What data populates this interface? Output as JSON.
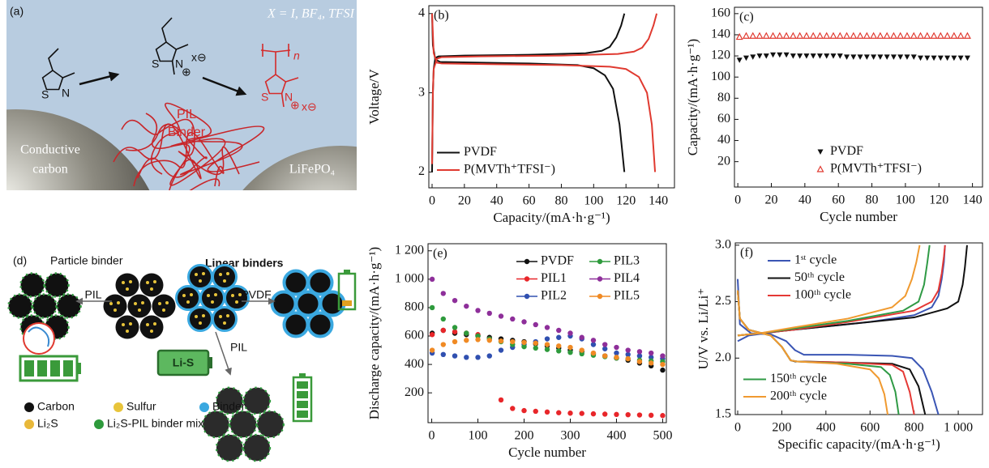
{
  "panel_a": {
    "label": "(a)",
    "formula": "X = I, BF₄, TFSI",
    "pil": "PIL",
    "binder": "Binder",
    "carbon": [
      "Conductive",
      "carbon"
    ],
    "lifepo4": "LiFePO₄",
    "atoms": [
      "S",
      "N",
      "S",
      "N",
      "⊕",
      "x⊖",
      "S",
      "N",
      "⊕",
      "x⊖",
      "n"
    ]
  },
  "panel_d": {
    "label": "(d)",
    "particle": "Particle binder",
    "linear": "Linear binders",
    "arrows": [
      "PIL",
      "PVDF",
      "PIL"
    ],
    "battery": "Li-S",
    "legend": [
      "Carbon",
      "Sulfur",
      "Binder",
      "Li₂S",
      "Li₂S-PIL binder mix"
    ]
  },
  "chart_data": [
    {
      "type": "line",
      "label": "(b)",
      "xlabel": "Capacity/(mA·h·g⁻¹)",
      "ylabel": "Voltage/V",
      "xlim": [
        -2,
        150
      ],
      "ylim": [
        1.8,
        4.1
      ],
      "xticks": [
        0,
        20,
        40,
        60,
        80,
        100,
        120,
        140
      ],
      "yticks": [
        2,
        3,
        4
      ],
      "legend": "lower left",
      "series": [
        {
          "name": "PVDF",
          "color": "#111111",
          "curves": [
            {
              "x": [
                0,
                0.5,
                1,
                2,
                4,
                20,
                60,
                95,
                105,
                110,
                114,
                117,
                119
              ],
              "values": [
                2.0,
                3.0,
                3.3,
                3.44,
                3.46,
                3.47,
                3.48,
                3.5,
                3.53,
                3.58,
                3.7,
                3.85,
                4.0
              ]
            },
            {
              "x": [
                0,
                0.5,
                2,
                5,
                30,
                60,
                90,
                100,
                107,
                112,
                116,
                119
              ],
              "values": [
                4.0,
                3.6,
                3.42,
                3.39,
                3.38,
                3.37,
                3.35,
                3.31,
                3.22,
                3.05,
                2.6,
                2.0
              ]
            }
          ]
        },
        {
          "name": "P(MVTh⁺TFSI⁻)",
          "color": "#e03a30",
          "curves": [
            {
              "x": [
                0,
                0.5,
                1,
                3,
                6,
                30,
                80,
                115,
                125,
                130,
                134,
                137,
                139
              ],
              "values": [
                2.1,
                3.0,
                3.3,
                3.43,
                3.45,
                3.46,
                3.47,
                3.49,
                3.52,
                3.57,
                3.68,
                3.85,
                4.0
              ]
            },
            {
              "x": [
                0,
                1,
                3,
                6,
                40,
                80,
                110,
                120,
                128,
                133,
                136,
                138
              ],
              "values": [
                4.0,
                3.5,
                3.38,
                3.37,
                3.36,
                3.35,
                3.33,
                3.3,
                3.2,
                3.0,
                2.6,
                2.0
              ]
            }
          ]
        }
      ]
    },
    {
      "type": "scatter",
      "label": "(c)",
      "xlabel": "Cycle number",
      "ylabel": "Capacity/(mA·h·g⁻¹)",
      "xlim": [
        -2,
        146
      ],
      "ylim": [
        -4,
        166
      ],
      "xticks": [
        0,
        20,
        40,
        60,
        80,
        100,
        120,
        140
      ],
      "yticks": [
        20,
        40,
        60,
        80,
        100,
        120,
        140,
        160
      ],
      "legend": "lower center",
      "x": [
        1,
        5,
        9,
        13,
        17,
        21,
        25,
        29,
        33,
        37,
        41,
        45,
        49,
        53,
        57,
        61,
        65,
        69,
        73,
        77,
        81,
        85,
        89,
        93,
        97,
        101,
        105,
        109,
        113,
        117,
        121,
        125,
        129,
        133,
        137
      ],
      "series": [
        {
          "name": "PVDF",
          "color": "#111111",
          "marker": "triangle-down",
          "values": [
            116,
            118,
            119,
            120,
            120,
            121,
            121,
            121,
            120,
            120,
            120,
            120,
            120,
            120,
            120,
            120,
            119,
            119,
            119,
            119,
            119,
            119,
            119,
            119,
            119,
            119,
            119,
            118,
            118,
            118,
            118,
            118,
            118,
            118,
            118
          ]
        },
        {
          "name": "P(MVTh⁺TFSI⁻)",
          "color": "#e03a30",
          "marker": "triangle-up",
          "values": [
            138,
            139,
            139,
            139,
            139,
            139,
            139,
            139,
            139,
            139,
            139,
            139,
            139,
            139,
            139,
            139,
            139,
            139,
            139,
            139,
            139,
            139,
            139,
            139,
            139,
            139,
            139,
            139,
            139,
            139,
            139,
            139,
            139,
            139,
            139
          ]
        }
      ]
    },
    {
      "type": "scatter",
      "label": "(e)",
      "xlabel": "Cycle number",
      "ylabel": "Discharge capacity/(mA·h·g⁻¹)",
      "xlim": [
        -8,
        508
      ],
      "ylim": [
        -10,
        1250
      ],
      "xticks": [
        0,
        100,
        200,
        300,
        400,
        500
      ],
      "yticks": [
        200,
        400,
        600,
        800,
        {
          "value": 1000,
          "label": "1 000"
        },
        {
          "value": 1200,
          "label": "1 200"
        }
      ],
      "legend": "upper right",
      "legend_columns": 2,
      "x": [
        1,
        25,
        50,
        75,
        100,
        125,
        150,
        175,
        200,
        225,
        250,
        275,
        300,
        325,
        350,
        375,
        400,
        425,
        450,
        475,
        500
      ],
      "series": [
        {
          "name": "PVDF",
          "color": "#111111",
          "marker": "circle",
          "values": [
            620,
            640,
            620,
            610,
            600,
            590,
            580,
            570,
            560,
            545,
            530,
            515,
            500,
            490,
            475,
            460,
            445,
            430,
            410,
            390,
            360
          ]
        },
        {
          "name": "PIL1",
          "color": "#e8262a",
          "marker": "circle",
          "values": [
            610,
            640,
            630,
            620,
            610,
            580,
            150,
            90,
            75,
            70,
            65,
            60,
            57,
            55,
            52,
            50,
            48,
            46,
            44,
            42,
            40
          ]
        },
        {
          "name": "PIL2",
          "color": "#3050b0",
          "marker": "circle",
          "values": [
            480,
            470,
            460,
            450,
            450,
            460,
            500,
            520,
            540,
            560,
            580,
            590,
            600,
            580,
            540,
            510,
            480,
            470,
            460,
            450,
            440
          ]
        },
        {
          "name": "PIL3",
          "color": "#2e9a3c",
          "marker": "circle",
          "values": [
            800,
            720,
            660,
            620,
            600,
            580,
            560,
            540,
            525,
            515,
            505,
            495,
            485,
            475,
            465,
            455,
            445,
            440,
            430,
            425,
            420
          ]
        },
        {
          "name": "PIL4",
          "color": "#8e2f9a",
          "marker": "circle",
          "values": [
            1000,
            900,
            850,
            810,
            780,
            760,
            740,
            720,
            700,
            680,
            660,
            640,
            620,
            590,
            570,
            540,
            520,
            500,
            490,
            480,
            460
          ]
        },
        {
          "name": "PIL5",
          "color": "#f08a24",
          "marker": "circle",
          "values": [
            500,
            540,
            560,
            570,
            575,
            570,
            565,
            560,
            555,
            550,
            540,
            530,
            520,
            500,
            480,
            460,
            450,
            440,
            420,
            410,
            400
          ]
        }
      ]
    },
    {
      "type": "line",
      "label": "(f)",
      "xlabel": "Specific capacity/(mA·h·g⁻¹)",
      "ylabel": "U/V vs. Li/Li⁺",
      "xlim": [
        -11,
        1110
      ],
      "ylim": [
        1.5,
        3.02
      ],
      "xticks": [
        0,
        200,
        400,
        600,
        800,
        {
          "value": 1000,
          "label": "1 000"
        }
      ],
      "yticks": [
        1.5,
        {
          "value": 2,
          "label": "2.0"
        },
        2.5,
        {
          "value": 3,
          "label": "3.0"
        }
      ],
      "legend": [
        "upper left",
        "upper left",
        "upper left",
        "lower left",
        "lower left"
      ],
      "series": [
        {
          "name": "1ˢᵗ cycle",
          "color": "#3a55b4",
          "curves": [
            {
              "x": [
                0,
                10,
                60,
                150,
                220,
                260,
                300,
                500,
                700,
                790,
                840,
                880,
                910
              ],
              "values": [
                2.7,
                2.3,
                2.22,
                2.21,
                2.15,
                2.07,
                2.03,
                2.03,
                2.02,
                2.0,
                1.9,
                1.7,
                1.5
              ]
            },
            {
              "x": [
                0,
                50,
                200,
                400,
                600,
                800,
                880,
                910,
                925,
                935,
                940
              ],
              "values": [
                2.15,
                2.2,
                2.24,
                2.28,
                2.32,
                2.38,
                2.45,
                2.55,
                2.7,
                2.85,
                3.0
              ]
            }
          ]
        },
        {
          "name": "50ᵗʰ cycle",
          "color": "#111111",
          "curves": [
            {
              "x": [
                0,
                10,
                50,
                150,
                200,
                240,
                260,
                300,
                500,
                700,
                780,
                820,
                850
              ],
              "values": [
                2.6,
                2.35,
                2.25,
                2.2,
                2.1,
                1.98,
                1.97,
                1.97,
                1.96,
                1.95,
                1.9,
                1.75,
                1.5
              ]
            },
            {
              "x": [
                0,
                100,
                250,
                500,
                800,
                950,
                1000,
                1020,
                1030,
                1040
              ],
              "values": [
                2.2,
                2.22,
                2.25,
                2.3,
                2.36,
                2.44,
                2.5,
                2.65,
                2.8,
                3.0
              ]
            }
          ]
        },
        {
          "name": "100ᵗʰ cycle",
          "color": "#e53935",
          "curves": [
            {
              "x": [
                0,
                10,
                50,
                150,
                200,
                240,
                270,
                500,
                700,
                750,
                780,
                800
              ],
              "values": [
                2.6,
                2.35,
                2.25,
                2.2,
                2.1,
                1.98,
                1.97,
                1.96,
                1.94,
                1.88,
                1.7,
                1.5
              ]
            },
            {
              "x": [
                0,
                100,
                250,
                500,
                800,
                880,
                910,
                925,
                935,
                940
              ],
              "values": [
                2.2,
                2.22,
                2.25,
                2.32,
                2.42,
                2.5,
                2.6,
                2.75,
                2.9,
                3.0
              ]
            }
          ]
        },
        {
          "name": "150ᵗʰ cycle",
          "color": "#2f9a45",
          "curves": [
            {
              "x": [
                0,
                10,
                50,
                150,
                200,
                240,
                270,
                500,
                650,
                690,
                715,
                730
              ],
              "values": [
                2.6,
                2.35,
                2.25,
                2.2,
                2.1,
                1.98,
                1.97,
                1.95,
                1.92,
                1.85,
                1.7,
                1.5
              ]
            },
            {
              "x": [
                0,
                100,
                250,
                500,
                750,
                820,
                845,
                860,
                870
              ],
              "values": [
                2.2,
                2.22,
                2.26,
                2.33,
                2.42,
                2.5,
                2.65,
                2.85,
                3.0
              ]
            }
          ]
        },
        {
          "name": "200ᵗʰ cycle",
          "color": "#f09a30",
          "curves": [
            {
              "x": [
                0,
                10,
                50,
                150,
                200,
                240,
                270,
                450,
                600,
                640,
                665,
                680
              ],
              "values": [
                2.6,
                2.35,
                2.25,
                2.2,
                2.1,
                1.98,
                1.97,
                1.95,
                1.9,
                1.82,
                1.68,
                1.5
              ]
            },
            {
              "x": [
                0,
                100,
                250,
                500,
                700,
                760,
                790,
                810,
                825
              ],
              "values": [
                2.2,
                2.22,
                2.27,
                2.35,
                2.45,
                2.55,
                2.7,
                2.85,
                3.0
              ]
            }
          ]
        }
      ]
    }
  ]
}
